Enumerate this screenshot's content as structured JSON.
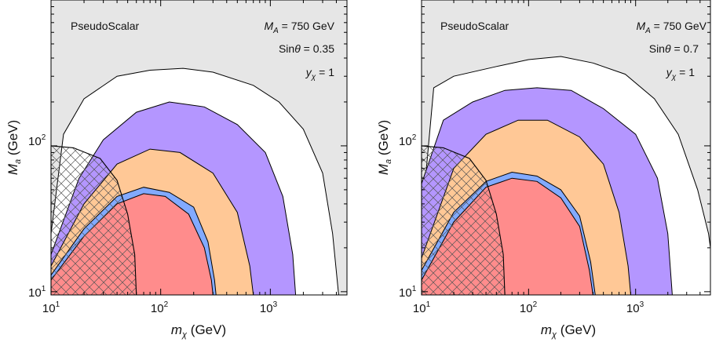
{
  "chart_data": [
    {
      "type": "area",
      "panel": "left",
      "xlabel": "m_χ (GeV)",
      "ylabel": "M_a (GeV)",
      "xscale": "log",
      "yscale": "log",
      "xlim": [
        10,
        5000
      ],
      "ylim": [
        9.5,
        1000
      ],
      "x_ticks": [
        {
          "value": 10,
          "base": "10",
          "exp": "1"
        },
        {
          "value": 100,
          "base": "10",
          "exp": "2"
        },
        {
          "value": 1000,
          "base": "10",
          "exp": "3"
        }
      ],
      "y_ticks": [
        {
          "value": 10,
          "base": "10",
          "exp": "1"
        },
        {
          "value": 100,
          "base": "10",
          "exp": "2"
        }
      ],
      "annotations": {
        "model": "PseudoScalar",
        "ma": {
          "main": "M",
          "sub": "A",
          "rest": " = 750 GeV"
        },
        "sin": {
          "main": "Sin",
          "theta": "θ",
          "rest": " = 0.35"
        },
        "yx": {
          "main": "y",
          "sub": "χ",
          "rest": " = 1"
        }
      },
      "background_color": "#e6e6e6",
      "regions": [
        {
          "color": "#ffffff",
          "points": [
            [
              10,
              25
            ],
            [
              13,
              120
            ],
            [
              20,
              210
            ],
            [
              40,
              300
            ],
            [
              80,
              330
            ],
            [
              160,
              340
            ],
            [
              300,
              320
            ],
            [
              700,
              260
            ],
            [
              1200,
              200
            ],
            [
              2000,
              130
            ],
            [
              3000,
              65
            ],
            [
              3700,
              25
            ],
            [
              4200,
              9.5
            ],
            [
              10,
              9.5
            ]
          ]
        },
        {
          "color": "#b496ff",
          "points": [
            [
              10,
              18
            ],
            [
              18,
              60
            ],
            [
              30,
              110
            ],
            [
              60,
              170
            ],
            [
              120,
              200
            ],
            [
              250,
              185
            ],
            [
              500,
              140
            ],
            [
              900,
              90
            ],
            [
              1300,
              45
            ],
            [
              1600,
              18
            ],
            [
              1700,
              9.5
            ],
            [
              10,
              9.5
            ]
          ]
        },
        {
          "color": "#ffc896",
          "points": [
            [
              10,
              15
            ],
            [
              20,
              40
            ],
            [
              40,
              75
            ],
            [
              80,
              95
            ],
            [
              150,
              90
            ],
            [
              300,
              65
            ],
            [
              500,
              35
            ],
            [
              650,
              15
            ],
            [
              700,
              9.5
            ],
            [
              10,
              9.5
            ]
          ]
        },
        {
          "color": "#82aaff",
          "points": [
            [
              10,
              13
            ],
            [
              20,
              27
            ],
            [
              40,
              45
            ],
            [
              70,
              52
            ],
            [
              120,
              48
            ],
            [
              200,
              38
            ],
            [
              270,
              22
            ],
            [
              310,
              12
            ],
            [
              320,
              9.5
            ],
            [
              10,
              9.5
            ]
          ]
        },
        {
          "color": "#ff8c8c",
          "points": [
            [
              10,
              12
            ],
            [
              20,
              24
            ],
            [
              40,
              40
            ],
            [
              70,
              47
            ],
            [
              110,
              45
            ],
            [
              180,
              34
            ],
            [
              250,
              20
            ],
            [
              290,
              12
            ],
            [
              300,
              9.5
            ],
            [
              10,
              9.5
            ]
          ]
        }
      ],
      "hatch": {
        "points": [
          [
            10,
            100
          ],
          [
            16,
            97
          ],
          [
            28,
            82
          ],
          [
            40,
            58
          ],
          [
            50,
            34
          ],
          [
            58,
            18
          ],
          [
            60,
            9.5
          ],
          [
            10,
            9.5
          ]
        ]
      }
    },
    {
      "type": "area",
      "panel": "right",
      "xlabel": "m_χ (GeV)",
      "ylabel": "M_a (GeV)",
      "xscale": "log",
      "yscale": "log",
      "xlim": [
        10,
        5000
      ],
      "ylim": [
        9.5,
        1000
      ],
      "x_ticks": [
        {
          "value": 10,
          "base": "10",
          "exp": "1"
        },
        {
          "value": 100,
          "base": "10",
          "exp": "2"
        },
        {
          "value": 1000,
          "base": "10",
          "exp": "3"
        }
      ],
      "y_ticks": [
        {
          "value": 10,
          "base": "10",
          "exp": "1"
        },
        {
          "value": 100,
          "base": "10",
          "exp": "2"
        }
      ],
      "annotations": {
        "model": "PseudoScalar",
        "ma": {
          "main": "M",
          "sub": "A",
          "rest": " = 750 GeV"
        },
        "sin": {
          "main": "Sin",
          "theta": "θ",
          "rest": " = 0.7"
        },
        "yx": {
          "main": "y",
          "sub": "χ",
          "rest": " = 1"
        }
      },
      "background_color": "#e6e6e6",
      "regions": [
        {
          "color": "#ffffff",
          "points": [
            [
              10,
              30
            ],
            [
              13,
              250
            ],
            [
              20,
              300
            ],
            [
              50,
              350
            ],
            [
              100,
              390
            ],
            [
              200,
              410
            ],
            [
              400,
              370
            ],
            [
              800,
              310
            ],
            [
              1500,
              210
            ],
            [
              2500,
              120
            ],
            [
              3800,
              50
            ],
            [
              4800,
              25
            ],
            [
              5000,
              20
            ],
            [
              5000,
              9.5
            ],
            [
              10,
              9.5
            ]
          ]
        },
        {
          "color": "#b496ff",
          "points": [
            [
              10,
              55
            ],
            [
              16,
              150
            ],
            [
              30,
              200
            ],
            [
              60,
              240
            ],
            [
              120,
              250
            ],
            [
              250,
              240
            ],
            [
              500,
              180
            ],
            [
              1000,
              120
            ],
            [
              1600,
              60
            ],
            [
              2000,
              25
            ],
            [
              2200,
              9.5
            ],
            [
              10,
              9.5
            ]
          ]
        },
        {
          "color": "#ffc896",
          "points": [
            [
              10,
              17
            ],
            [
              20,
              70
            ],
            [
              40,
              120
            ],
            [
              80,
              150
            ],
            [
              150,
              150
            ],
            [
              300,
              115
            ],
            [
              500,
              75
            ],
            [
              700,
              35
            ],
            [
              850,
              15
            ],
            [
              900,
              9.5
            ],
            [
              10,
              9.5
            ]
          ]
        },
        {
          "color": "#82aaff",
          "points": [
            [
              10,
              14
            ],
            [
              20,
              35
            ],
            [
              40,
              57
            ],
            [
              70,
              66
            ],
            [
              120,
              62
            ],
            [
              200,
              50
            ],
            [
              300,
              33
            ],
            [
              380,
              16
            ],
            [
              420,
              9.5
            ],
            [
              10,
              9.5
            ]
          ]
        },
        {
          "color": "#ff8c8c",
          "points": [
            [
              10,
              12
            ],
            [
              20,
              30
            ],
            [
              40,
              52
            ],
            [
              70,
              60
            ],
            [
              120,
              57
            ],
            [
              200,
              44
            ],
            [
              300,
              28
            ],
            [
              370,
              14
            ],
            [
              400,
              9.5
            ],
            [
              10,
              9.5
            ]
          ]
        }
      ],
      "hatch": {
        "points": [
          [
            10,
            100
          ],
          [
            16,
            97
          ],
          [
            28,
            82
          ],
          [
            40,
            58
          ],
          [
            50,
            34
          ],
          [
            58,
            18
          ],
          [
            60,
            9.5
          ],
          [
            10,
            9.5
          ]
        ]
      }
    }
  ]
}
